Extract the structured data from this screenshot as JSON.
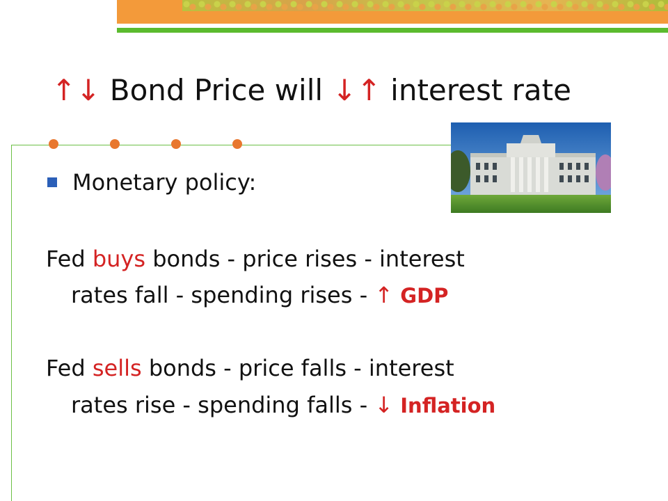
{
  "slide": {
    "title": {
      "arrows_left": "↑↓",
      "text_1": "Bond Price will",
      "arrows_mid": "↓↑",
      "text_2": "interest rate"
    },
    "bullet": "Monetary policy:",
    "para1": {
      "pre": "Fed ",
      "hl": "buys",
      "post": " bonds - price rises - interest",
      "line2": "rates fall - spending rises - ",
      "arrow": "↑",
      "outcome": "GDP"
    },
    "para2": {
      "pre": "Fed ",
      "hl": "sells",
      "post": " bonds - price falls - interest",
      "line2": "rates rise - spending falls - ",
      "arrow": "↓",
      "outcome": "Inflation"
    }
  },
  "colors": {
    "accent_red": "#d42323",
    "banner_orange": "#f39a3a",
    "banner_green": "#5bbb2e",
    "bullet_blue": "#2b5fb8",
    "dot_orange": "#e8772e"
  },
  "image": {
    "alt_icon": "federal-reserve-building-photo"
  }
}
